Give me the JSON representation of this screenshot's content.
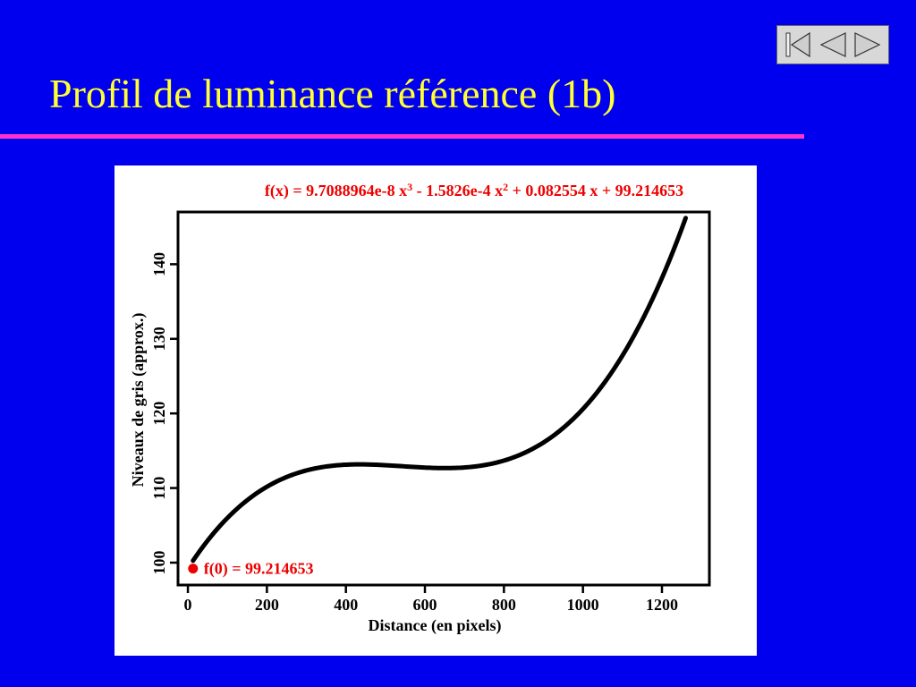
{
  "slide": {
    "title": "Profil de luminance référence (1b)"
  },
  "navigation": {
    "buttons": [
      {
        "name": "first-slide-button",
        "icon": "skip-to-start-icon"
      },
      {
        "name": "previous-slide-button",
        "icon": "triangle-left-icon"
      },
      {
        "name": "next-slide-button",
        "icon": "triangle-right-icon"
      }
    ]
  },
  "colors": {
    "background": "#0000ee",
    "title": "#ffff33",
    "rule": "#ff33cc",
    "curve": "#000000",
    "annotation": "#ee0000"
  },
  "chart_data": {
    "type": "line",
    "formula": {
      "lead": "f(x) = 9.7088964e-8 x",
      "exp1": "3",
      "middle": " - 1.5826e-4 x",
      "exp2": "2",
      "tail": " + 0.082554 x + 99.214653"
    },
    "coefficients": {
      "a3": 9.7088964e-08,
      "a2": -0.00015826,
      "a1": 0.082554,
      "a0": 99.214653
    },
    "x_range": [
      13,
      1260
    ],
    "xlabel": "Distance (en pixels)",
    "ylabel": "Niveaux de gris (approx.)",
    "xlim": [
      -25,
      1320
    ],
    "ylim": [
      97,
      147
    ],
    "x_ticks": [
      0,
      200,
      400,
      600,
      800,
      1000,
      1200
    ],
    "x_tick_labels": [
      "0",
      "200",
      "400",
      "600",
      "800",
      "1000",
      "1200"
    ],
    "y_ticks": [
      100,
      110,
      120,
      130,
      140
    ],
    "y_tick_labels": [
      "100",
      "110",
      "120",
      "130",
      "140"
    ],
    "marker": {
      "x": 13,
      "y": 99.2,
      "label": "f(0) = 99.214653"
    },
    "grid": false,
    "legend": "none"
  }
}
